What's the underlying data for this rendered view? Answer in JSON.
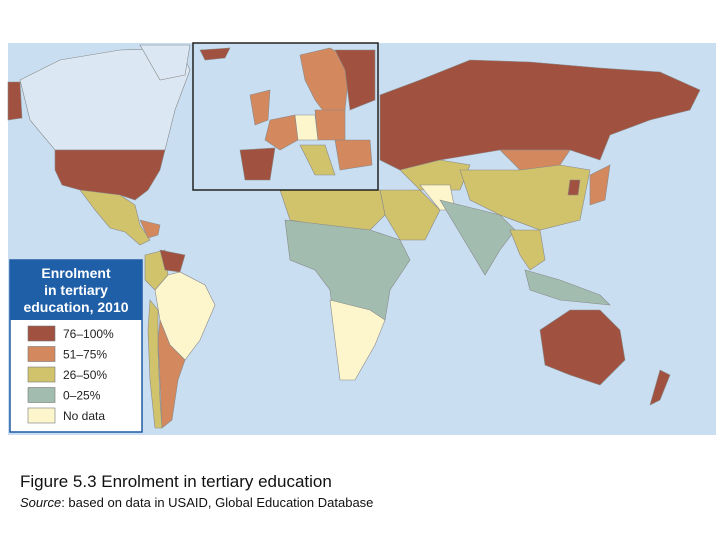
{
  "legend": {
    "title_lines": [
      "Enrolment",
      "in tertiary",
      "education, 2010"
    ],
    "items": [
      {
        "label": "76–100%",
        "color": "#a1513f"
      },
      {
        "label": "51–75%",
        "color": "#d3885e"
      },
      {
        "label": "26–50%",
        "color": "#d1c26c"
      },
      {
        "label": "0–25%",
        "color": "#a2bdaf"
      },
      {
        "label": "No data",
        "color": "#fdf6cd"
      }
    ]
  },
  "caption": "Figure 5.3 Enrolment in tertiary education",
  "source": {
    "label": "Source",
    "text": ": based on data in USAID, Global Education Database"
  }
}
